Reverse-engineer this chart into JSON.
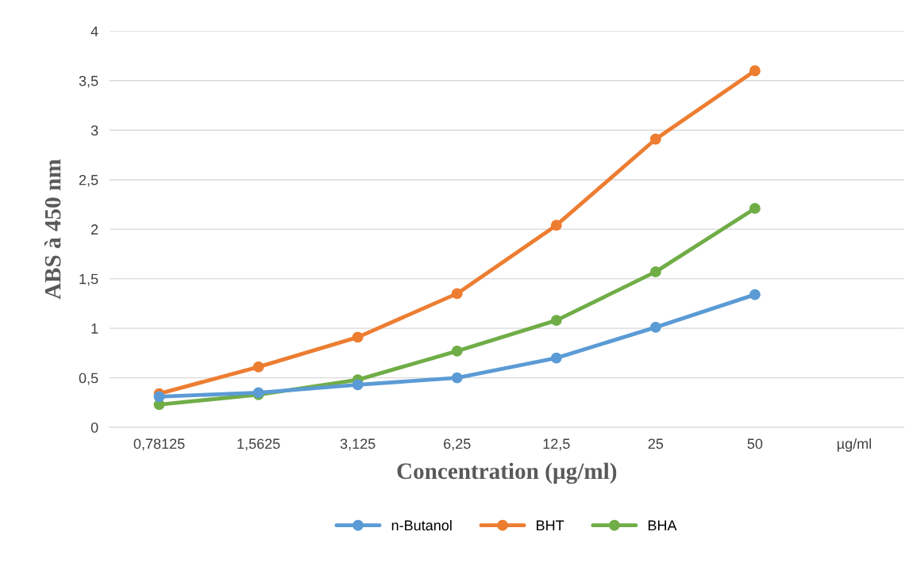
{
  "chart_data": {
    "type": "line",
    "xlabel": "Concentration (µg/ml)",
    "ylabel": "ABS à 450 nm",
    "categories": [
      "0,78125",
      "1,5625",
      "3,125",
      "6,25",
      "12,5",
      "25",
      "50",
      "µg/ml"
    ],
    "series": [
      {
        "name": "n-Butanol",
        "color": "#5b9bd5",
        "values": [
          0.31,
          0.35,
          0.43,
          0.5,
          0.7,
          1.01,
          1.34,
          null
        ]
      },
      {
        "name": "BHT",
        "color": "#ed7d31",
        "values": [
          0.34,
          0.61,
          0.91,
          1.35,
          2.04,
          2.91,
          3.6,
          null
        ]
      },
      {
        "name": "BHA",
        "color": "#70ad47",
        "values": [
          0.23,
          0.33,
          0.48,
          0.77,
          1.08,
          1.57,
          2.21,
          null
        ]
      }
    ],
    "ylim": [
      0,
      4
    ],
    "yticks": [
      0,
      {
        "value": 0.5,
        "label": "0,5"
      },
      1,
      {
        "value": 1.5,
        "label": "1,5"
      },
      2,
      {
        "value": 2.5,
        "label": "2,5"
      },
      3,
      {
        "value": 3.5,
        "label": "3,5"
      },
      4
    ],
    "grid": "y",
    "legend": "bottom",
    "marker": "circle",
    "line_style": "solid"
  }
}
